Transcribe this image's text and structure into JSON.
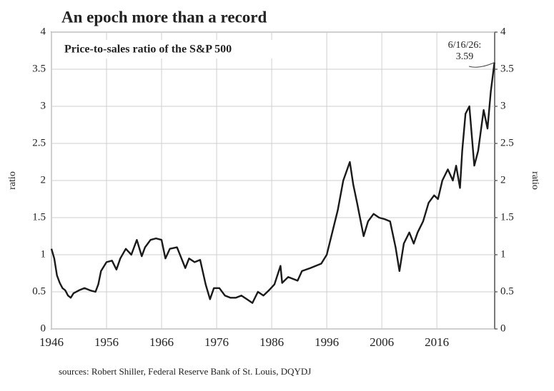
{
  "chart_data": {
    "type": "line",
    "title": "An epoch more than a record",
    "subtitle": "Price-to-sales ratio of the S&P 500",
    "ylabel": "ratio",
    "y2label": "ratio",
    "source": "sources: Robert Shiller, Federal Reserve Bank of St. Louis, DQYDJ",
    "annotation": [
      "6/16/26:",
      "3.59"
    ],
    "color": "#1a1a1a",
    "grid": true,
    "x": [
      1946.0,
      1946.5,
      1947,
      1947.5,
      1948,
      1948.5,
      1949,
      1949.5,
      1950,
      1951,
      1952,
      1953,
      1954,
      1954.5,
      1955,
      1956,
      1957,
      1957.8,
      1958.5,
      1959.5,
      1960.5,
      1961.5,
      1962.4,
      1963,
      1964,
      1965,
      1966,
      1966.7,
      1967.5,
      1968.8,
      1970.3,
      1971,
      1972,
      1973,
      1974,
      1974.8,
      1975.5,
      1976.5,
      1977.5,
      1978.5,
      1979.5,
      1980.5,
      1981.5,
      1982.5,
      1983.5,
      1984.5,
      1985.5,
      1986.5,
      1987.6,
      1987.9,
      1989,
      1990.7,
      1991.5,
      1993,
      1995,
      1996,
      1997,
      1998,
      1999,
      2000.2,
      2000.8,
      2001.5,
      2002.7,
      2003.5,
      2004.5,
      2005.5,
      2006.5,
      2007.5,
      2008.5,
      2009.2,
      2010,
      2011,
      2011.8,
      2012.5,
      2013.5,
      2014.5,
      2015.5,
      2016.2,
      2017,
      2018,
      2018.9,
      2019.5,
      2020.2,
      2020.6,
      2021.2,
      2021.9,
      2022.8,
      2023.5,
      2024.5,
      2025.2,
      2025.8,
      2026.46
    ],
    "values": [
      1.08,
      0.95,
      0.72,
      0.62,
      0.55,
      0.52,
      0.45,
      0.42,
      0.48,
      0.52,
      0.55,
      0.52,
      0.5,
      0.6,
      0.78,
      0.9,
      0.92,
      0.8,
      0.95,
      1.08,
      1.0,
      1.2,
      0.98,
      1.1,
      1.2,
      1.22,
      1.2,
      0.95,
      1.08,
      1.1,
      0.82,
      0.95,
      0.9,
      0.93,
      0.6,
      0.4,
      0.55,
      0.55,
      0.45,
      0.42,
      0.42,
      0.45,
      0.4,
      0.35,
      0.5,
      0.45,
      0.52,
      0.6,
      0.85,
      0.62,
      0.7,
      0.65,
      0.78,
      0.82,
      0.88,
      1.0,
      1.3,
      1.6,
      2.0,
      2.25,
      1.95,
      1.7,
      1.25,
      1.45,
      1.55,
      1.5,
      1.48,
      1.45,
      1.1,
      0.78,
      1.15,
      1.3,
      1.15,
      1.3,
      1.45,
      1.7,
      1.8,
      1.75,
      2.0,
      2.15,
      2.0,
      2.2,
      1.9,
      2.4,
      2.9,
      3.0,
      2.2,
      2.4,
      2.95,
      2.7,
      3.2,
      3.59
    ],
    "xlim": [
      1946,
      2026.5
    ],
    "xticks": [
      1946,
      1956,
      1966,
      1976,
      1986,
      1996,
      2006,
      2016
    ],
    "ylim": [
      0,
      4
    ],
    "yticks": [
      0,
      0.5,
      1,
      1.5,
      2,
      2.5,
      3,
      3.5,
      4
    ],
    "y2lim": [
      0,
      4
    ],
    "y2ticks": [
      0,
      0.5,
      1,
      1.5,
      2,
      2.5,
      3,
      3.5,
      4
    ]
  }
}
